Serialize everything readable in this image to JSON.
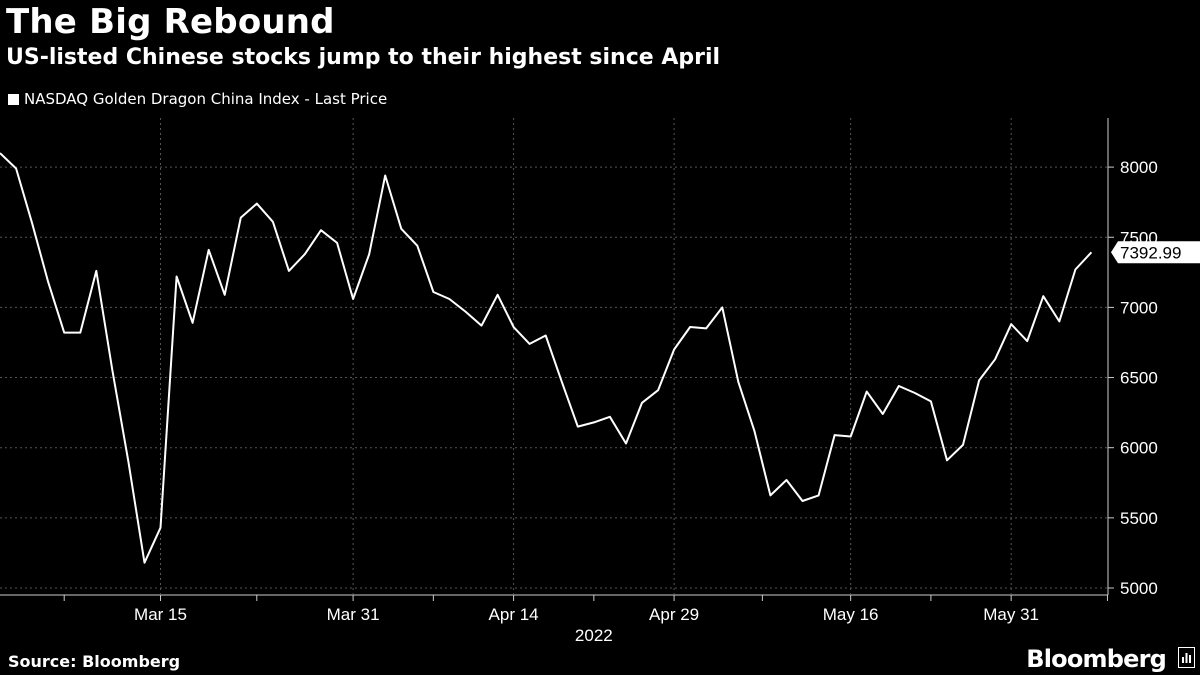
{
  "header": {
    "title": "The Big Rebound",
    "subtitle": "US-listed Chinese stocks jump to their highest since April"
  },
  "footer": {
    "source": "Source: Bloomberg",
    "brand": "Bloomberg",
    "brand_icon": "terminal-icon"
  },
  "chart_data": {
    "type": "line",
    "title": "The Big Rebound",
    "subtitle": "US-listed Chinese stocks jump to their highest since April",
    "xlabel": "2022",
    "ylabel": "",
    "x_tick_labels": [
      "Mar 15",
      "Mar 31",
      "Apr 14",
      "Apr 29",
      "May 16",
      "May 31"
    ],
    "x_year_label": "2022",
    "y_ticks": [
      5000,
      5500,
      6000,
      6500,
      7000,
      7500,
      8000
    ],
    "ylim": [
      4950,
      8350
    ],
    "grid": true,
    "legend": "top-left",
    "last_value_label": "7392.99",
    "colors": {
      "background": "#000000",
      "line": "#ffffff",
      "grid": "#555555",
      "text": "#ffffff"
    },
    "series": [
      {
        "name": "NASDAQ Golden Dragon China Index - Last Price",
        "values": [
          8100,
          7990,
          7600,
          7180,
          6820,
          6820,
          7260,
          6550,
          5900,
          5180,
          5430,
          7220,
          6890,
          7410,
          7090,
          7640,
          7740,
          7610,
          7260,
          7380,
          7550,
          7460,
          7060,
          7380,
          7940,
          7560,
          7440,
          7110,
          7060,
          6970,
          6870,
          7090,
          6860,
          6740,
          6800,
          6470,
          6150,
          6180,
          6220,
          6030,
          6320,
          6410,
          6700,
          6860,
          6850,
          7000,
          6470,
          6120,
          5660,
          5770,
          5620,
          5660,
          6090,
          6080,
          6400,
          6240,
          6440,
          6390,
          6330,
          5910,
          6020,
          6480,
          6630,
          6880,
          6760,
          7080,
          6900,
          7270,
          7392.99
        ],
        "x_labels_index": {
          "Mar 15": 10,
          "Mar 31": 22,
          "Apr 14": 32,
          "Apr 29": 42,
          "May 16": 53,
          "May 31": 63
        }
      }
    ]
  }
}
